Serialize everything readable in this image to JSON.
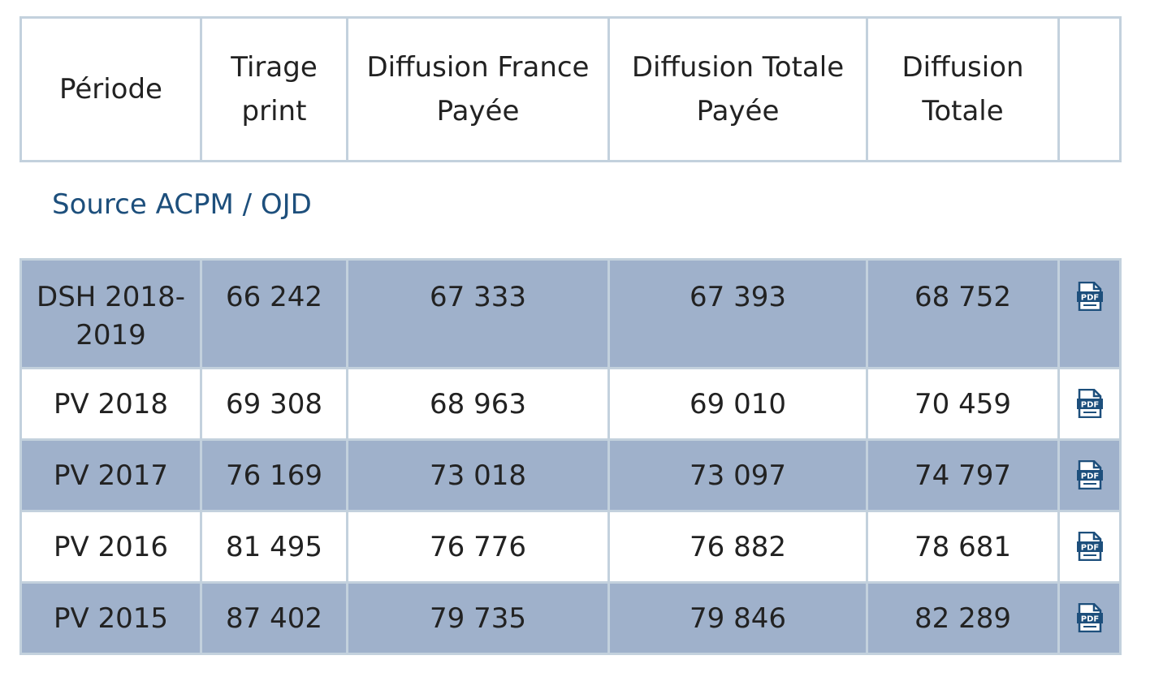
{
  "table": {
    "headers": [
      "Période",
      "Tirage print",
      "Diffusion France Payée",
      "Diffusion Totale Payée",
      "Diffusion Totale",
      ""
    ],
    "header_lines": [
      [
        "Période"
      ],
      [
        "Tirage",
        "print"
      ],
      [
        "Diffusion France",
        "Payée"
      ],
      [
        "Diffusion Totale",
        "Payée"
      ],
      [
        "Diffusion",
        "Totale"
      ],
      [
        ""
      ]
    ]
  },
  "source_link": "Source ACPM / OJD",
  "rows": [
    {
      "periode_lines": [
        "DSH 2018-",
        "2019"
      ],
      "tirage": "66 242",
      "france_payee": "67 333",
      "totale_payee": "67 393",
      "totale": "68 752",
      "icon": "pdf-icon",
      "shaded": true
    },
    {
      "periode_lines": [
        "PV 2018"
      ],
      "tirage": "69 308",
      "france_payee": "68 963",
      "totale_payee": "69 010",
      "totale": "70 459",
      "icon": "pdf-icon",
      "shaded": false
    },
    {
      "periode_lines": [
        "PV 2017"
      ],
      "tirage": "76 169",
      "france_payee": "73 018",
      "totale_payee": "73 097",
      "totale": "74 797",
      "icon": "pdf-icon",
      "shaded": true
    },
    {
      "periode_lines": [
        "PV 2016"
      ],
      "tirage": "81 495",
      "france_payee": "76 776",
      "totale_payee": "76 882",
      "totale": "78 681",
      "icon": "pdf-icon",
      "shaded": false
    },
    {
      "periode_lines": [
        "PV 2015"
      ],
      "tirage": "87 402",
      "france_payee": "79 735",
      "totale_payee": "79 846",
      "totale": "82 289",
      "icon": "pdf-icon",
      "shaded": true
    }
  ],
  "colors": {
    "row_shade": "#9fb1cb",
    "border": "#c3d1dd",
    "link": "#1d4f7c",
    "pdf_icon": "#1d4f7c"
  }
}
